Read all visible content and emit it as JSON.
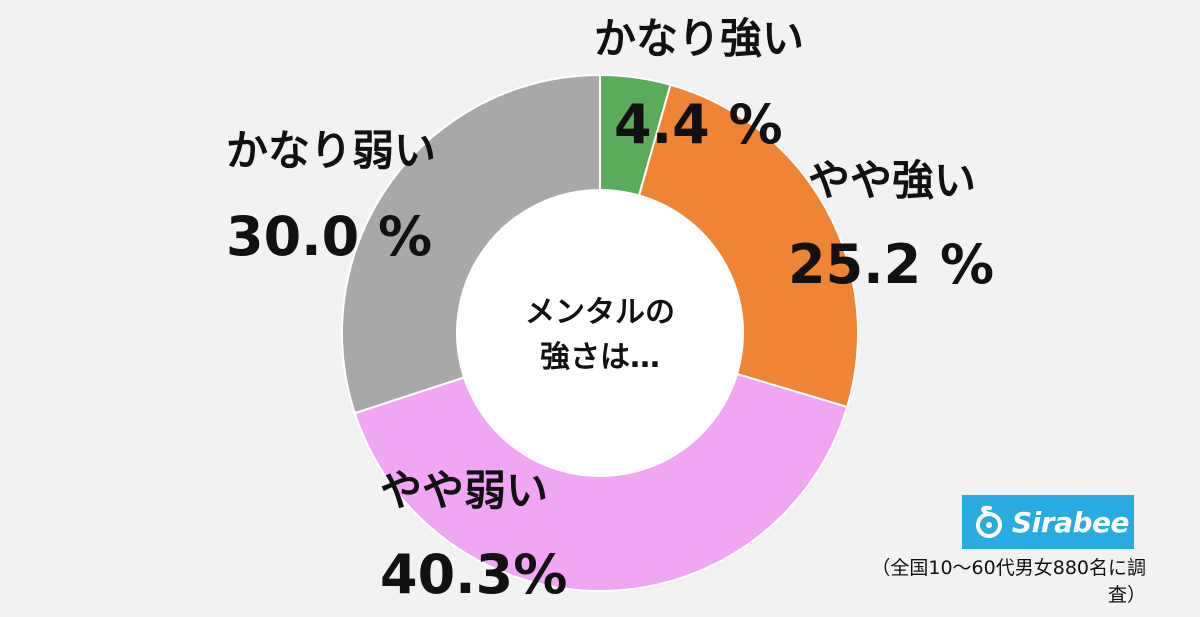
{
  "chart_data": {
    "type": "pie",
    "donut": true,
    "center_label_lines": [
      "メンタルの",
      "強さは…"
    ],
    "slices": [
      {
        "label": "かなり強い",
        "value": 4.4,
        "display": "4.4 %",
        "color": "#5aac5c"
      },
      {
        "label": "やや強い",
        "value": 25.2,
        "display": "25.2 %",
        "color": "#ee8434"
      },
      {
        "label": "やや弱い",
        "value": 40.3,
        "display": "40.3%",
        "color": "#f0a6f2"
      },
      {
        "label": "かなり弱い",
        "value": 30.0,
        "display": "30.0 %",
        "color": "#a8a8a8"
      }
    ]
  },
  "logo": {
    "text": "Sirabee",
    "color": "#29abe2"
  },
  "source_note": "（全国10〜60代男女880名に調査）"
}
